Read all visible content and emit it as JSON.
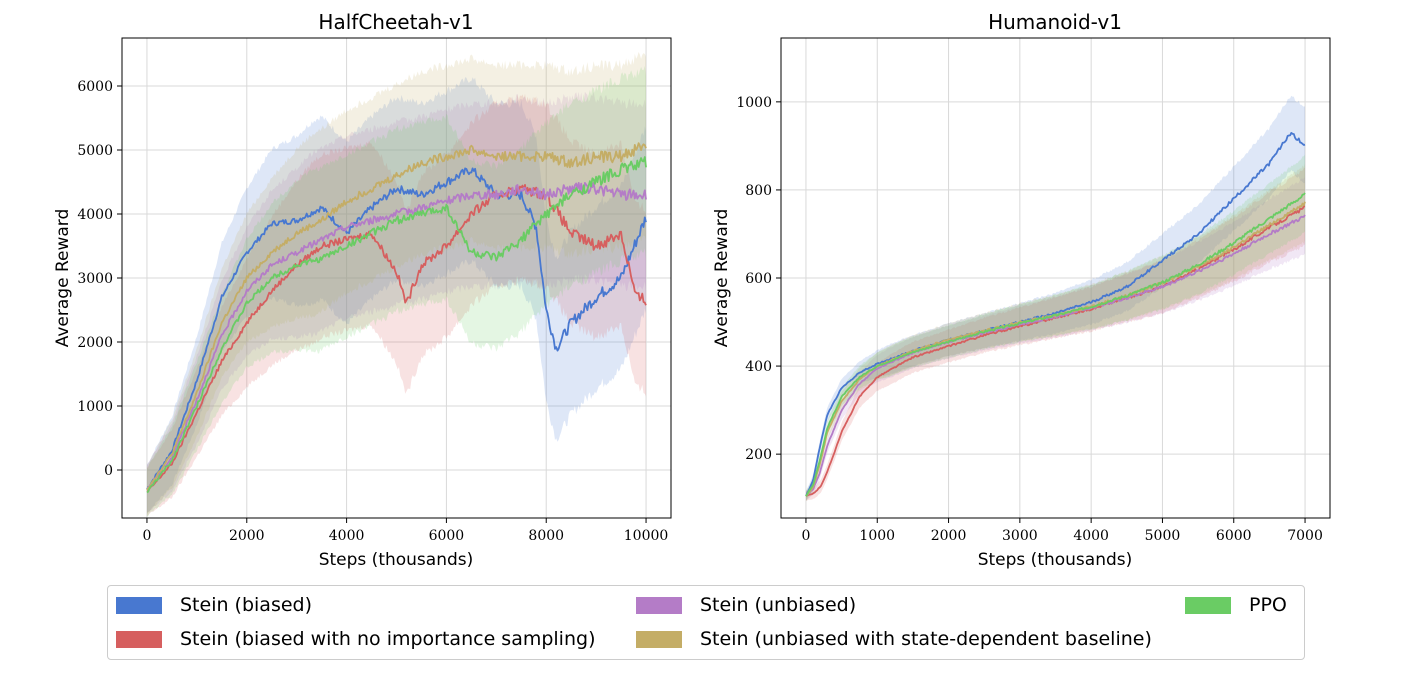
{
  "chart_data": [
    {
      "type": "line",
      "title": "HalfCheetah-v1",
      "xlabel": "Steps (thousands)",
      "ylabel": "Average Reward",
      "xlim": [
        -500,
        10500
      ],
      "ylim": [
        -750,
        6750
      ],
      "xticks": [
        0,
        2000,
        4000,
        6000,
        8000,
        10000
      ],
      "yticks": [
        0,
        1000,
        2000,
        3000,
        4000,
        5000,
        6000
      ],
      "grid": true,
      "shaded_band": true,
      "series": [
        {
          "name": "Stein (biased)",
          "x": [
            0,
            500,
            1000,
            1500,
            2000,
            2500,
            3000,
            3500,
            4000,
            4500,
            5000,
            5500,
            6000,
            6500,
            7000,
            7500,
            7800,
            8000,
            8200,
            8500,
            9000,
            9500,
            10000
          ],
          "y": [
            -300,
            300,
            1400,
            2700,
            3400,
            3850,
            3900,
            4100,
            3700,
            4100,
            4400,
            4300,
            4500,
            4700,
            4300,
            4300,
            3800,
            2500,
            1900,
            2300,
            2700,
            3000,
            3950
          ]
        },
        {
          "name": "Stein (biased with no importance sampling)",
          "x": [
            0,
            500,
            1000,
            1500,
            2000,
            2500,
            3000,
            3500,
            4000,
            4500,
            5000,
            5200,
            5500,
            6000,
            6500,
            7000,
            7500,
            8000,
            8500,
            9000,
            9500,
            9800,
            10000
          ],
          "y": [
            -350,
            100,
            900,
            1700,
            2300,
            2800,
            3200,
            3500,
            3600,
            3700,
            3100,
            2600,
            3200,
            3500,
            4000,
            4300,
            4400,
            4300,
            3700,
            3500,
            3700,
            2700,
            2650
          ]
        },
        {
          "name": "Stein (unbiased)",
          "x": [
            0,
            500,
            1000,
            1500,
            2000,
            2500,
            3000,
            3500,
            4000,
            4500,
            5000,
            5500,
            6000,
            6500,
            7000,
            7500,
            8000,
            8500,
            9000,
            9500,
            10000
          ],
          "y": [
            -300,
            200,
            1100,
            2100,
            2800,
            3200,
            3400,
            3600,
            3800,
            3900,
            4000,
            4100,
            4200,
            4300,
            4300,
            4400,
            4300,
            4400,
            4400,
            4300,
            4300
          ]
        },
        {
          "name": "Stein (unbiased with state-dependent baseline)",
          "x": [
            0,
            500,
            1000,
            1500,
            2000,
            2500,
            3000,
            3500,
            4000,
            4500,
            5000,
            5500,
            6000,
            6500,
            7000,
            7500,
            8000,
            8500,
            9000,
            9500,
            10000
          ],
          "y": [
            -300,
            250,
            1200,
            2300,
            3000,
            3400,
            3700,
            3900,
            4200,
            4400,
            4600,
            4800,
            4900,
            5000,
            4900,
            4900,
            4900,
            4800,
            4900,
            4900,
            5100
          ]
        },
        {
          "name": "PPO",
          "x": [
            0,
            500,
            1000,
            1500,
            2000,
            2500,
            3000,
            3500,
            4000,
            4500,
            5000,
            5500,
            6000,
            6500,
            7000,
            7500,
            8000,
            8500,
            9000,
            9500,
            10000
          ],
          "y": [
            -350,
            150,
            1000,
            1900,
            2600,
            3000,
            3200,
            3300,
            3500,
            3700,
            3900,
            4000,
            4100,
            3400,
            3300,
            3600,
            4000,
            4300,
            4500,
            4700,
            4800
          ]
        }
      ]
    },
    {
      "type": "line",
      "title": "Humanoid-v1",
      "xlabel": "Steps (thousands)",
      "ylabel": "Average Reward",
      "xlim": [
        -350,
        7350
      ],
      "ylim": [
        55,
        1145
      ],
      "xticks": [
        0,
        1000,
        2000,
        3000,
        4000,
        5000,
        6000,
        7000
      ],
      "yticks": [
        200,
        400,
        600,
        800,
        1000
      ],
      "grid": true,
      "shaded_band": true,
      "series": [
        {
          "name": "Stein (biased)",
          "x": [
            0,
            100,
            200,
            300,
            500,
            750,
            1000,
            1500,
            2000,
            2500,
            3000,
            3500,
            4000,
            4500,
            5000,
            5500,
            6000,
            6500,
            6800,
            7000
          ],
          "y": [
            105,
            140,
            220,
            290,
            350,
            385,
            405,
            435,
            460,
            480,
            500,
            520,
            545,
            580,
            640,
            700,
            780,
            860,
            930,
            900
          ]
        },
        {
          "name": "Stein (biased with no importance sampling)",
          "x": [
            0,
            100,
            200,
            300,
            500,
            750,
            1000,
            1500,
            2000,
            2500,
            3000,
            3500,
            4000,
            4500,
            5000,
            5500,
            6000,
            6500,
            7000
          ],
          "y": [
            105,
            110,
            125,
            160,
            250,
            330,
            375,
            420,
            445,
            470,
            490,
            510,
            530,
            555,
            580,
            620,
            665,
            715,
            760
          ]
        },
        {
          "name": "Stein (unbiased)",
          "x": [
            0,
            100,
            200,
            300,
            500,
            750,
            1000,
            1500,
            2000,
            2500,
            3000,
            3500,
            4000,
            4500,
            5000,
            5500,
            6000,
            6500,
            7000
          ],
          "y": [
            105,
            120,
            160,
            220,
            300,
            360,
            395,
            430,
            455,
            475,
            495,
            512,
            532,
            555,
            580,
            615,
            655,
            700,
            740
          ]
        },
        {
          "name": "Stein (unbiased with state-dependent baseline)",
          "x": [
            0,
            100,
            200,
            300,
            500,
            750,
            1000,
            1500,
            2000,
            2500,
            3000,
            3500,
            4000,
            4500,
            5000,
            5500,
            6000,
            6500,
            7000
          ],
          "y": [
            105,
            125,
            180,
            250,
            320,
            370,
            400,
            435,
            460,
            480,
            500,
            515,
            535,
            560,
            590,
            625,
            670,
            720,
            770
          ]
        },
        {
          "name": "PPO",
          "x": [
            0,
            100,
            200,
            300,
            500,
            750,
            1000,
            1500,
            2000,
            2500,
            3000,
            3500,
            4000,
            4500,
            5000,
            5500,
            6000,
            6500,
            7000
          ],
          "y": [
            105,
            130,
            190,
            260,
            330,
            375,
            400,
            432,
            455,
            478,
            497,
            515,
            535,
            560,
            590,
            630,
            680,
            735,
            790
          ]
        }
      ]
    }
  ],
  "legend": {
    "placement": "bottom",
    "items": [
      {
        "label": "Stein (biased)",
        "color": "#4878d0"
      },
      {
        "label": "Stein (biased with no importance sampling)",
        "color": "#d65f5f"
      },
      {
        "label": "Stein (unbiased)",
        "color": "#b47cc7"
      },
      {
        "label": "Stein (unbiased with state-dependent baseline)",
        "color": "#c4ad66"
      },
      {
        "label": "PPO",
        "color": "#6acc64"
      }
    ]
  }
}
